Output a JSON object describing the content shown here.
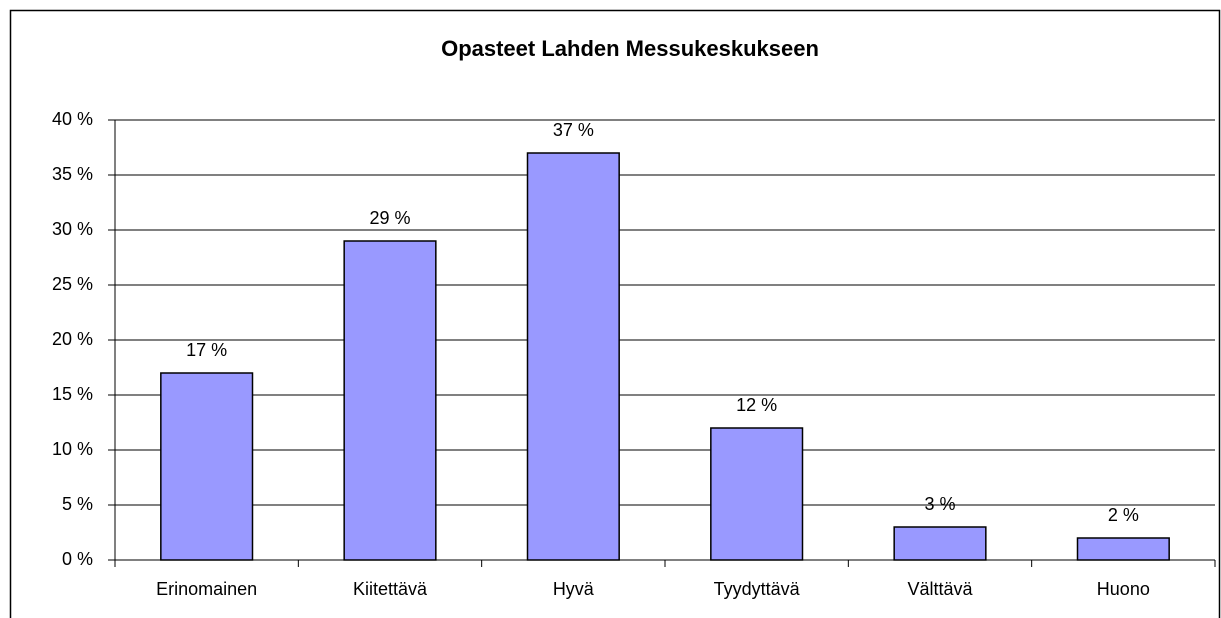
{
  "chart_data": {
    "type": "bar",
    "title": "Opasteet Lahden Messukeskukseen",
    "categories": [
      "Erinomainen",
      "Kiitettävä",
      "Hyvä",
      "Tyydyttävä",
      "Välttävä",
      "Huono"
    ],
    "values": [
      17,
      29,
      37,
      12,
      3,
      2
    ],
    "value_labels": [
      "17 %",
      "29 %",
      "37 %",
      "12 %",
      "3 %",
      "2 %"
    ],
    "color": "#9999ff",
    "ylim": [
      0,
      40
    ],
    "yticks": [
      {
        "value": 0,
        "label": "0 %"
      },
      {
        "value": 5,
        "label": "5 %"
      },
      {
        "value": 10,
        "label": "10 %"
      },
      {
        "value": 15,
        "label": "15 %"
      },
      {
        "value": 20,
        "label": "20 %"
      },
      {
        "value": 25,
        "label": "25 %"
      },
      {
        "value": 30,
        "label": "30 %"
      },
      {
        "value": 35,
        "label": "35 %"
      },
      {
        "value": 40,
        "label": "40 %"
      }
    ],
    "grid": true
  }
}
